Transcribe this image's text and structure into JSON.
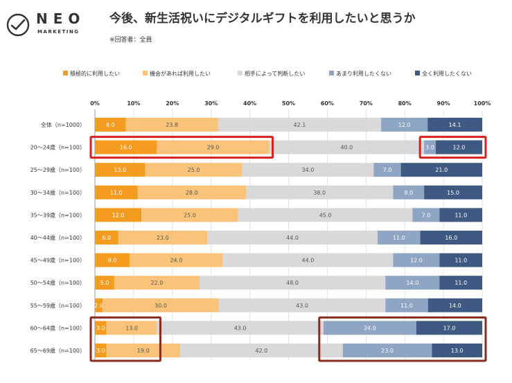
{
  "logo": {
    "name": "NEO",
    "sub": "MARKETING"
  },
  "title": "今後、新生活祝いにデジタルギフトを利用したいと思うか",
  "subtitle": "※回答者：全員",
  "colors": {
    "series": [
      "#F39C1F",
      "#F9C47A",
      "#D9D9D9",
      "#8EA5C4",
      "#3E5A82"
    ],
    "label_dark": [
      "#ffffff",
      "#555555",
      "#555555",
      "#ffffff",
      "#ffffff"
    ],
    "highlight": "#D62020",
    "highlight2": "#8B2A1E"
  },
  "chart_data": {
    "type": "bar",
    "orientation": "horizontal",
    "stacked": true,
    "percent": true,
    "xlim": [
      0,
      100
    ],
    "xticks": [
      "0%",
      "10%",
      "20%",
      "30%",
      "40%",
      "50%",
      "60%",
      "70%",
      "80%",
      "90%",
      "100%"
    ],
    "categories": [
      "全体（n=1000）",
      "20〜24歳（n=100）",
      "25〜29歳（n=100）",
      "30〜34歳（n=100）",
      "35〜39歳（n=100）",
      "40〜44歳（n=100）",
      "45〜49歳（n=100）",
      "50〜54歳（n=100）",
      "55〜59歳（n=100）",
      "60〜64歳（n=100）",
      "65〜69歳（n=100）"
    ],
    "series": [
      {
        "name": "積極的に利用したい",
        "values": [
          8.0,
          16.0,
          13.0,
          11.0,
          12.0,
          6.0,
          9.0,
          5.0,
          2.0,
          3.0,
          3.0
        ]
      },
      {
        "name": "機会があれば利用したい",
        "values": [
          23.8,
          29.0,
          25.0,
          28.0,
          25.0,
          23.0,
          24.0,
          22.0,
          30.0,
          13.0,
          19.0
        ]
      },
      {
        "name": "相手によって判断したい",
        "values": [
          42.1,
          40.0,
          34.0,
          38.0,
          45.0,
          44.0,
          44.0,
          48.0,
          43.0,
          43.0,
          42.0
        ]
      },
      {
        "name": "あまり利用したくない",
        "values": [
          12.0,
          3.0,
          7.0,
          8.0,
          7.0,
          11.0,
          12.0,
          14.0,
          11.0,
          24.0,
          23.0
        ]
      },
      {
        "name": "全く利用したくない",
        "values": [
          14.1,
          12.0,
          21.0,
          15.0,
          11.0,
          16.0,
          11.0,
          11.0,
          14.0,
          17.0,
          13.0
        ]
      }
    ],
    "legend_position": "top",
    "grid": true,
    "highlights": [
      {
        "row": 1,
        "from_series": 0,
        "to_series": 1,
        "style": "highlight"
      },
      {
        "row": 1,
        "from_series": 3,
        "to_series": 4,
        "style": "highlight"
      },
      {
        "row": 9,
        "rows_to": 10,
        "from_series": 0,
        "to_series": 1,
        "style": "highlight2"
      },
      {
        "row": 9,
        "rows_to": 10,
        "from_series": 3,
        "to_series": 4,
        "style": "highlight2"
      }
    ]
  }
}
